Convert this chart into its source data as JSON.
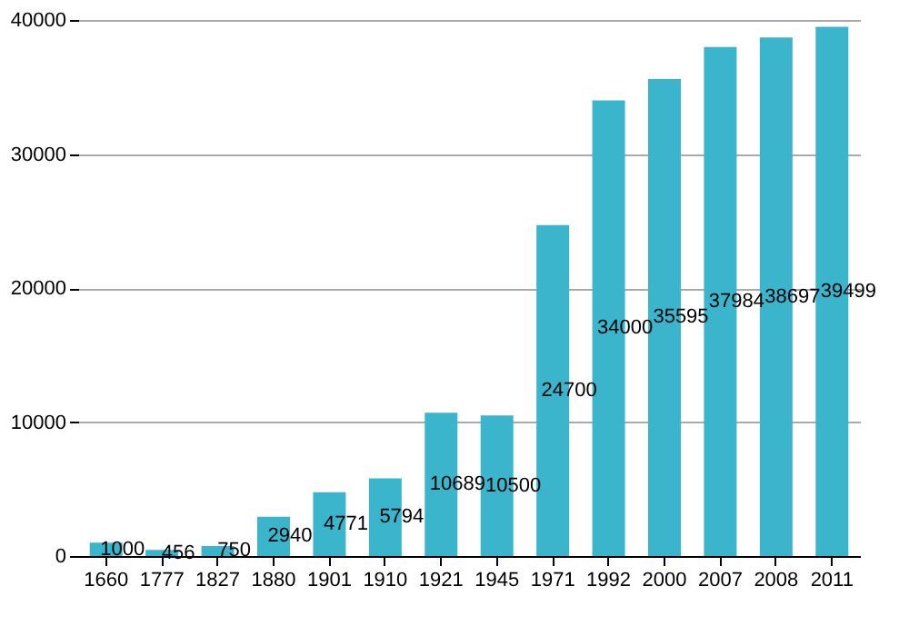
{
  "chart_data": {
    "type": "bar",
    "categories": [
      "1660",
      "1777",
      "1827",
      "1880",
      "1901",
      "1910",
      "1921",
      "1945",
      "1971",
      "1992",
      "2000",
      "2007",
      "2008",
      "2011"
    ],
    "values": [
      1000,
      456,
      750,
      2940,
      4771,
      5794,
      10689,
      10500,
      24700,
      34000,
      35595,
      37984,
      38697,
      39499
    ],
    "color": "#3ab5cc",
    "ylim": [
      0,
      40000
    ],
    "yticks": [
      0,
      10000,
      20000,
      30000,
      40000
    ],
    "grid": "y",
    "data_labels": true
  }
}
